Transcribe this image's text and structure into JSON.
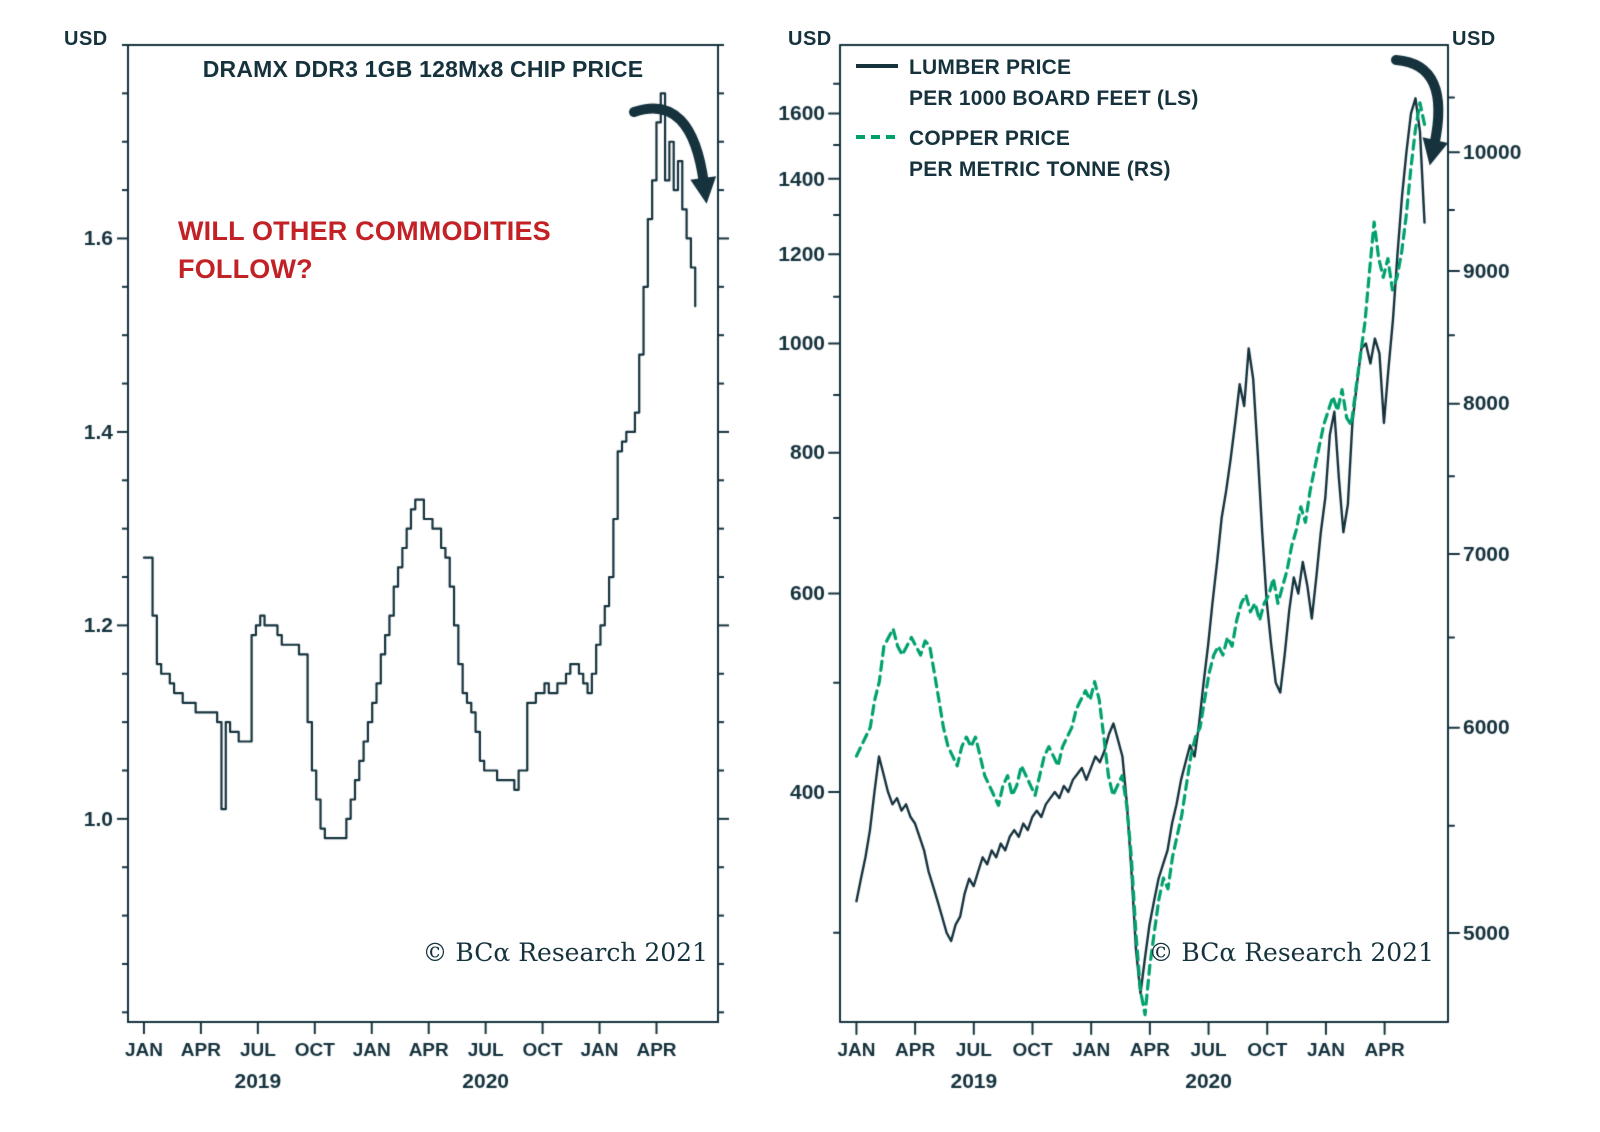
{
  "colors": {
    "background": "#ffffff",
    "ink": "#15323d",
    "red": "#c22126",
    "green": "#00a06e"
  },
  "chart_data": [
    {
      "id": "dram",
      "type": "line",
      "title": "DRAMX DDR3 1GB 128Mx8 CHIP PRICE",
      "unit_label": "USD",
      "annotation": "WILL OTHER COMMODITIES FOLLOW?",
      "copyright": "© BCα Research 2021",
      "x_range": [
        2018.93,
        2021.52
      ],
      "x_ticks": [
        {
          "pos": 2019.0,
          "label": "JAN"
        },
        {
          "pos": 2019.25,
          "label": "APR"
        },
        {
          "pos": 2019.5,
          "label": "JUL"
        },
        {
          "pos": 2019.75,
          "label": "OCT"
        },
        {
          "pos": 2020.0,
          "label": "JAN"
        },
        {
          "pos": 2020.25,
          "label": "APR"
        },
        {
          "pos": 2020.5,
          "label": "JUL"
        },
        {
          "pos": 2020.75,
          "label": "OCT"
        },
        {
          "pos": 2021.0,
          "label": "JAN"
        },
        {
          "pos": 2021.25,
          "label": "APR"
        }
      ],
      "year_labels": [
        {
          "pos": 2019.5,
          "label": "2019"
        },
        {
          "pos": 2020.5,
          "label": "2020"
        }
      ],
      "axes": {
        "left": {
          "scale": "linear",
          "range": [
            0.79,
            1.8
          ],
          "major_ticks": [
            {
              "v": 1.0,
              "label": "1.0"
            },
            {
              "v": 1.2,
              "label": "1.2"
            },
            {
              "v": 1.4,
              "label": "1.4"
            },
            {
              "v": 1.6,
              "label": "1.6"
            }
          ],
          "minor_step": 0.05
        }
      },
      "annotations": [
        {
          "icon": "curved-down-arrow"
        }
      ],
      "series": [
        {
          "name": "DRAMX DDR3 1GB 128Mx8 chip price",
          "axis": "left",
          "color_key": "ink",
          "line_width": 2.2,
          "step": true,
          "x_start": 2019.0,
          "x_end": 2021.42,
          "values": [
            1.27,
            1.27,
            1.21,
            1.16,
            1.15,
            1.15,
            1.14,
            1.13,
            1.13,
            1.12,
            1.12,
            1.12,
            1.11,
            1.11,
            1.11,
            1.11,
            1.11,
            1.1,
            1.01,
            1.1,
            1.09,
            1.09,
            1.08,
            1.08,
            1.08,
            1.19,
            1.2,
            1.21,
            1.2,
            1.2,
            1.2,
            1.19,
            1.18,
            1.18,
            1.18,
            1.18,
            1.17,
            1.17,
            1.1,
            1.05,
            1.02,
            0.99,
            0.98,
            0.98,
            0.98,
            0.98,
            0.98,
            1.0,
            1.02,
            1.04,
            1.06,
            1.08,
            1.1,
            1.12,
            1.14,
            1.17,
            1.19,
            1.21,
            1.24,
            1.26,
            1.28,
            1.3,
            1.32,
            1.33,
            1.33,
            1.31,
            1.31,
            1.3,
            1.3,
            1.28,
            1.27,
            1.24,
            1.2,
            1.16,
            1.13,
            1.12,
            1.11,
            1.09,
            1.06,
            1.05,
            1.05,
            1.05,
            1.04,
            1.04,
            1.04,
            1.04,
            1.03,
            1.05,
            1.05,
            1.12,
            1.12,
            1.13,
            1.13,
            1.14,
            1.13,
            1.13,
            1.14,
            1.14,
            1.15,
            1.16,
            1.16,
            1.15,
            1.14,
            1.13,
            1.15,
            1.18,
            1.2,
            1.22,
            1.25,
            1.31,
            1.38,
            1.39,
            1.4,
            1.4,
            1.42,
            1.48,
            1.55,
            1.62,
            1.66,
            1.72,
            1.75,
            1.66,
            1.7,
            1.65,
            1.68,
            1.63,
            1.6,
            1.57,
            1.53
          ]
        }
      ]
    },
    {
      "id": "lc",
      "type": "line",
      "unit_label_left": "USD",
      "unit_label_right": "USD",
      "copyright": "© BCα Research 2021",
      "legend": [
        {
          "label_line1": "LUMBER PRICE",
          "label_line2": "PER 1000 BOARD FEET (LS)",
          "style": "solid",
          "color_key": "ink"
        },
        {
          "label_line1": "COPPER PRICE",
          "label_line2": "PER METRIC TONNE (RS)",
          "style": "dashed",
          "color_key": "green"
        }
      ],
      "x_range": [
        2018.93,
        2021.52
      ],
      "x_ticks": [
        {
          "pos": 2019.0,
          "label": "JAN"
        },
        {
          "pos": 2019.25,
          "label": "APR"
        },
        {
          "pos": 2019.5,
          "label": "JUL"
        },
        {
          "pos": 2019.75,
          "label": "OCT"
        },
        {
          "pos": 2020.0,
          "label": "JAN"
        },
        {
          "pos": 2020.25,
          "label": "APR"
        },
        {
          "pos": 2020.5,
          "label": "JUL"
        },
        {
          "pos": 2020.75,
          "label": "OCT"
        },
        {
          "pos": 2021.0,
          "label": "JAN"
        },
        {
          "pos": 2021.25,
          "label": "APR"
        }
      ],
      "year_labels": [
        {
          "pos": 2019.5,
          "label": "2019"
        },
        {
          "pos": 2020.5,
          "label": "2020"
        }
      ],
      "axes": {
        "left": {
          "scale": "log",
          "range": [
            250,
            1840
          ],
          "major_ticks": [
            {
              "v": 400,
              "label": "400"
            },
            {
              "v": 600,
              "label": "600"
            },
            {
              "v": 800,
              "label": "800"
            },
            {
              "v": 1000,
              "label": "1000"
            },
            {
              "v": 1200,
              "label": "1200"
            },
            {
              "v": 1400,
              "label": "1400"
            },
            {
              "v": 1600,
              "label": "1600"
            }
          ],
          "minor_ticks": [
            300,
            500,
            700,
            900,
            1100,
            1300,
            1500,
            1700
          ]
        },
        "right": {
          "scale": "log",
          "range": [
            4620,
            11000
          ],
          "major_ticks": [
            {
              "v": 5000,
              "label": "5000"
            },
            {
              "v": 6000,
              "label": "6000"
            },
            {
              "v": 7000,
              "label": "7000"
            },
            {
              "v": 8000,
              "label": "8000"
            },
            {
              "v": 9000,
              "label": "9000"
            },
            {
              "v": 10000,
              "label": "10000"
            }
          ],
          "minor_ticks": [
            5500,
            6500,
            7500,
            8500,
            9500,
            10500
          ]
        }
      },
      "annotations": [
        {
          "icon": "curved-down-arrow"
        }
      ],
      "series": [
        {
          "name": "Lumber price per 1000 board feet (LS)",
          "axis": "left",
          "color_key": "ink",
          "line_width": 2.4,
          "x_start": 2019.0,
          "x_end": 2021.42,
          "values": [
            320,
            335,
            350,
            370,
            400,
            430,
            415,
            400,
            390,
            395,
            385,
            390,
            380,
            375,
            365,
            355,
            340,
            330,
            320,
            310,
            300,
            295,
            305,
            310,
            325,
            335,
            330,
            340,
            350,
            345,
            355,
            350,
            360,
            355,
            365,
            370,
            365,
            375,
            370,
            380,
            385,
            380,
            390,
            395,
            400,
            395,
            405,
            400,
            410,
            415,
            420,
            410,
            420,
            430,
            425,
            435,
            450,
            460,
            445,
            430,
            390,
            340,
            290,
            265,
            285,
            305,
            320,
            335,
            345,
            355,
            375,
            390,
            410,
            425,
            440,
            430,
            460,
            500,
            540,
            590,
            640,
            700,
            740,
            790,
            850,
            920,
            880,
            990,
            930,
            800,
            680,
            590,
            540,
            500,
            490,
            530,
            580,
            620,
            600,
            640,
            610,
            570,
            620,
            680,
            730,
            830,
            870,
            760,
            680,
            720,
            850,
            920,
            990,
            1000,
            960,
            1010,
            980,
            850,
            950,
            1050,
            1200,
            1350,
            1480,
            1600,
            1650,
            1540,
            1280
          ]
        },
        {
          "name": "Copper price per metric tonne (RS)",
          "axis": "right",
          "color_key": "green",
          "line_width": 3.2,
          "dash": [
            9,
            6
          ],
          "x_start": 2019.0,
          "x_end": 2021.42,
          "values": [
            5850,
            5900,
            5950,
            6000,
            6150,
            6250,
            6450,
            6500,
            6550,
            6450,
            6400,
            6450,
            6500,
            6450,
            6400,
            6480,
            6450,
            6300,
            6150,
            6000,
            5900,
            5850,
            5800,
            5900,
            5950,
            5900,
            5950,
            5850,
            5750,
            5700,
            5650,
            5600,
            5700,
            5750,
            5650,
            5700,
            5800,
            5750,
            5700,
            5650,
            5750,
            5850,
            5900,
            5850,
            5800,
            5900,
            5950,
            6000,
            6100,
            6150,
            6200,
            6150,
            6250,
            6150,
            5950,
            5750,
            5650,
            5700,
            5750,
            5600,
            5350,
            5000,
            4750,
            4650,
            4850,
            5000,
            5150,
            5250,
            5200,
            5350,
            5450,
            5550,
            5700,
            5850,
            5950,
            6000,
            6150,
            6300,
            6400,
            6450,
            6400,
            6500,
            6450,
            6600,
            6700,
            6750,
            6650,
            6700,
            6600,
            6700,
            6750,
            6850,
            6700,
            6800,
            6900,
            7050,
            7150,
            7300,
            7200,
            7400,
            7550,
            7700,
            7850,
            7950,
            8050,
            7950,
            8100,
            7900,
            7850,
            8100,
            8350,
            8600,
            9000,
            9400,
            9100,
            8950,
            9100,
            8850,
            8950,
            9150,
            9450,
            9850,
            10200,
            10450,
            10250
          ]
        }
      ]
    }
  ]
}
